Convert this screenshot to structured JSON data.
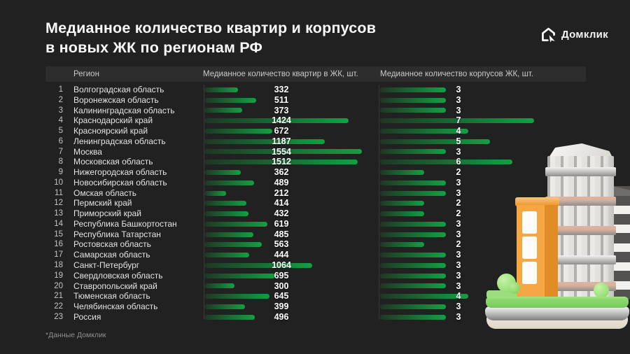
{
  "title": {
    "line1": "Медианное количество квартир и корпусов",
    "line2": "в новых ЖК по регионам РФ"
  },
  "logo": {
    "text": "Домклик"
  },
  "table": {
    "headers": {
      "region": "Регион",
      "apartments": "Медианное количество квартир в ЖК, шт.",
      "buildings": "Медианное количество корпусов ЖК, шт."
    },
    "rows": [
      {
        "num": 1,
        "region": "Волгоградская область",
        "apartments": 332,
        "buildings": 3
      },
      {
        "num": 2,
        "region": "Воронежская область",
        "apartments": 511,
        "buildings": 3
      },
      {
        "num": 3,
        "region": "Калининградская область",
        "apartments": 373,
        "buildings": 3
      },
      {
        "num": 4,
        "region": "Краснодарский край",
        "apartments": 1424,
        "buildings": 7
      },
      {
        "num": 5,
        "region": "Красноярский край",
        "apartments": 672,
        "buildings": 4
      },
      {
        "num": 6,
        "region": "Ленинградская область",
        "apartments": 1187,
        "buildings": 5
      },
      {
        "num": 7,
        "region": "Москва",
        "apartments": 1554,
        "buildings": 3
      },
      {
        "num": 8,
        "region": "Московская область",
        "apartments": 1512,
        "buildings": 6
      },
      {
        "num": 9,
        "region": "Нижегородская область",
        "apartments": 362,
        "buildings": 2
      },
      {
        "num": 10,
        "region": "Новосибирская область",
        "apartments": 489,
        "buildings": 3
      },
      {
        "num": 11,
        "region": "Омская область",
        "apartments": 212,
        "buildings": 3
      },
      {
        "num": 12,
        "region": "Пермский край",
        "apartments": 414,
        "buildings": 2
      },
      {
        "num": 13,
        "region": "Приморский край",
        "apartments": 432,
        "buildings": 2
      },
      {
        "num": 14,
        "region": "Республика Башкортостан",
        "apartments": 619,
        "buildings": 3
      },
      {
        "num": 15,
        "region": "Республика Татарстан",
        "apartments": 485,
        "buildings": 3
      },
      {
        "num": 16,
        "region": "Ростовская область",
        "apartments": 563,
        "buildings": 2
      },
      {
        "num": 17,
        "region": "Самарская область",
        "apartments": 444,
        "buildings": 3
      },
      {
        "num": 18,
        "region": "Санкт-Петербург",
        "apartments": 1064,
        "buildings": 3
      },
      {
        "num": 19,
        "region": "Свердловская область",
        "apartments": 695,
        "buildings": 3
      },
      {
        "num": 20,
        "region": "Ставропольский край",
        "apartments": 300,
        "buildings": 3
      },
      {
        "num": 21,
        "region": "Тюменская область",
        "apartments": 645,
        "buildings": 4
      },
      {
        "num": 22,
        "region": "Челябинская область",
        "apartments": 399,
        "buildings": 3
      },
      {
        "num": 23,
        "region": "Россия",
        "apartments": 496,
        "buildings": 3
      }
    ]
  },
  "footnote": "*Данные Домклик",
  "colors": {
    "background": "#212121",
    "header_band": "#2d2d2d",
    "bar_green_bright": "#13a043",
    "bar_green_dark": "#1f3a26",
    "text_primary": "#fafafa",
    "text_secondary": "#c9c9c9"
  },
  "chart_data": {
    "type": "bar",
    "orientation": "horizontal",
    "title": "Медианное количество квартир и корпусов в новых ЖК по регионам РФ",
    "source_note": "*Данные Домклик",
    "categories": [
      "Волгоградская область",
      "Воронежская область",
      "Калининградская область",
      "Краснодарский край",
      "Красноярский край",
      "Ленинградская область",
      "Москва",
      "Московская область",
      "Нижегородская область",
      "Новосибирская область",
      "Омская область",
      "Пермский край",
      "Приморский край",
      "Республика Башкортостан",
      "Республика Татарстан",
      "Ростовская область",
      "Самарская область",
      "Санкт-Петербург",
      "Свердловская область",
      "Ставропольский край",
      "Тюменская область",
      "Челябинская область",
      "Россия"
    ],
    "series": [
      {
        "name": "Медианное количество квартир в ЖК, шт.",
        "values": [
          332,
          511,
          373,
          1424,
          672,
          1187,
          1554,
          1512,
          362,
          489,
          212,
          414,
          432,
          619,
          485,
          563,
          444,
          1064,
          695,
          300,
          645,
          399,
          496
        ],
        "xlim": [
          0,
          1554
        ]
      },
      {
        "name": "Медианное количество корпусов ЖК, шт.",
        "values": [
          3,
          3,
          3,
          7,
          4,
          5,
          3,
          6,
          2,
          3,
          3,
          2,
          2,
          3,
          3,
          2,
          3,
          3,
          3,
          3,
          4,
          3,
          3
        ],
        "xlim": [
          0,
          7
        ]
      }
    ],
    "grid": false,
    "legend_position": "column-headers",
    "value_labels": "on-bars"
  }
}
